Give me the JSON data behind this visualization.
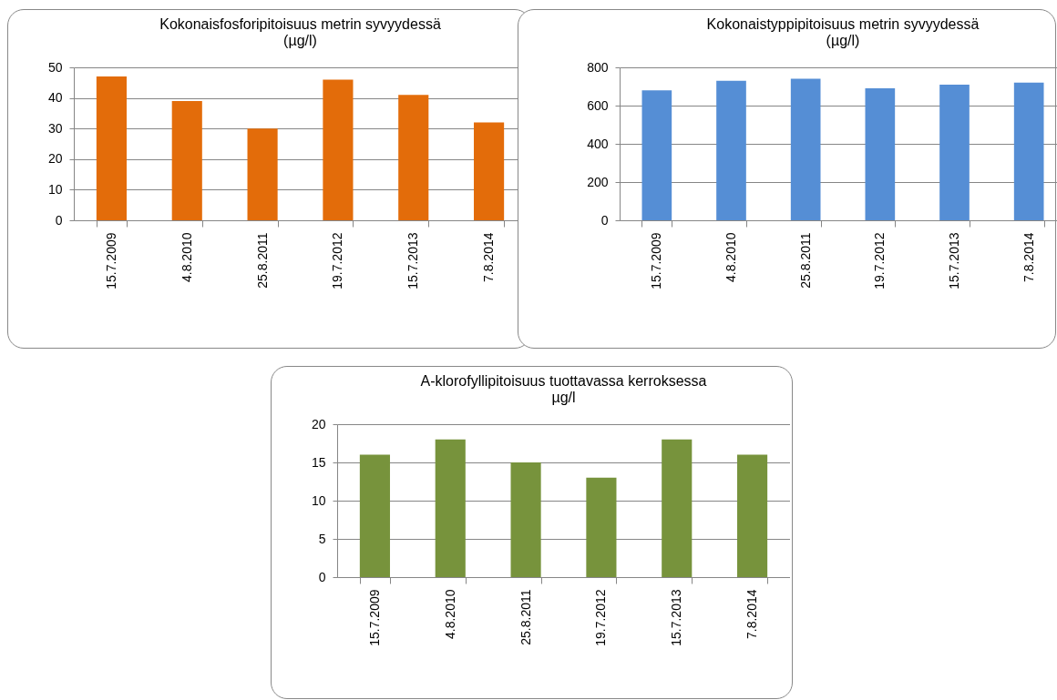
{
  "chart_data": [
    {
      "type": "bar",
      "title": "Kokonaisfosforipitoisuus metrin syvyydessä",
      "subtitle": "(µg/l)",
      "categories": [
        "15.7.2009",
        "4.8.2010",
        "25.8.2011",
        "19.7.2012",
        "15.7.2013",
        "7.8.2014"
      ],
      "values": [
        47,
        39,
        30,
        46,
        41,
        32
      ],
      "color": "#e36c0a",
      "ylim": [
        0,
        50
      ],
      "yticks": [
        0,
        10,
        20,
        30,
        40,
        50
      ],
      "grid": "y"
    },
    {
      "type": "bar",
      "title": "Kokonaistyppipitoisuus metrin syvyydessä",
      "subtitle": "(µg/l)",
      "categories": [
        "15.7.2009",
        "4.8.2010",
        "25.8.2011",
        "19.7.2012",
        "15.7.2013",
        "7.8.2014"
      ],
      "values": [
        680,
        730,
        740,
        690,
        710,
        720
      ],
      "color": "#558ed5",
      "ylim": [
        0,
        800
      ],
      "yticks": [
        0,
        200,
        400,
        600,
        800
      ],
      "grid": "y"
    },
    {
      "type": "bar",
      "title": "A-klorofyllipitoisuus tuottavassa kerroksessa",
      "subtitle": "µg/l",
      "categories": [
        "15.7.2009",
        "4.8.2010",
        "25.8.2011",
        "19.7.2012",
        "15.7.2013",
        "7.8.2014"
      ],
      "values": [
        16,
        18,
        15,
        13,
        18,
        16
      ],
      "color": "#77933c",
      "ylim": [
        0,
        20
      ],
      "yticks": [
        0,
        5,
        10,
        15,
        20
      ],
      "grid": "y"
    }
  ]
}
